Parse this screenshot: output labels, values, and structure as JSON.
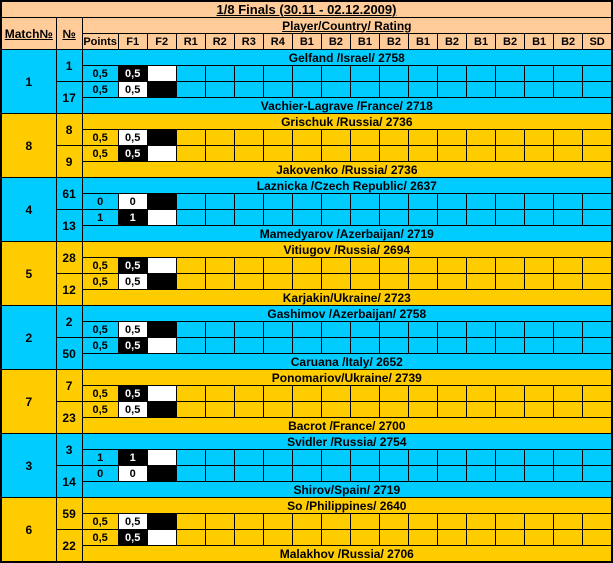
{
  "title": "1/8 Finals (30.11 - 02.12.2009)",
  "header": {
    "match_no_label": "Match№",
    "no_label": "№",
    "player_group_label": "Player/Country/ Rating",
    "columns": [
      "Points",
      "F1",
      "F2",
      "R1",
      "R2",
      "R3",
      "R4",
      "B1",
      "B2",
      "B1",
      "B2",
      "B1",
      "B2",
      "B1",
      "B2",
      "B1",
      "B2",
      "SD"
    ]
  },
  "colors": {
    "header_bg": "#ffcc99",
    "row_cyan": "#00ccff",
    "row_yellow": "#ffcc00",
    "white_game_cell": "#ffffff",
    "black_game_cell": "#000000",
    "black_cell_text": "#ffffff",
    "border": "#000000",
    "text": "#000000"
  },
  "matches": [
    {
      "match_no": "1",
      "row_color": "cyan",
      "players": [
        {
          "no": "1",
          "name": "Gelfand /Israel/ 2758",
          "points": "0,5",
          "f1": {
            "score": "0,5",
            "piece_color": "black"
          },
          "f2": {
            "score": "",
            "piece_color": "white"
          }
        },
        {
          "no": "17",
          "name": "Vachier-Lagrave /France/ 2718",
          "points": "0,5",
          "f1": {
            "score": "0,5",
            "piece_color": "white"
          },
          "f2": {
            "score": "",
            "piece_color": "black"
          }
        }
      ]
    },
    {
      "match_no": "8",
      "row_color": "yellow",
      "players": [
        {
          "no": "8",
          "name": "Grischuk /Russia/ 2736",
          "points": "0,5",
          "f1": {
            "score": "0,5",
            "piece_color": "white"
          },
          "f2": {
            "score": "",
            "piece_color": "black"
          }
        },
        {
          "no": "9",
          "name": "Jakovenko /Russia/ 2736",
          "points": "0,5",
          "f1": {
            "score": "0,5",
            "piece_color": "black"
          },
          "f2": {
            "score": "",
            "piece_color": "white"
          }
        }
      ]
    },
    {
      "match_no": "4",
      "row_color": "cyan",
      "players": [
        {
          "no": "61",
          "name": "Laznicka /Czech Republic/ 2637",
          "points": "0",
          "f1": {
            "score": "0",
            "piece_color": "white"
          },
          "f2": {
            "score": "",
            "piece_color": "black"
          }
        },
        {
          "no": "13",
          "name": "Mamedyarov /Azerbaijan/ 2719",
          "points": "1",
          "f1": {
            "score": "1",
            "piece_color": "black"
          },
          "f2": {
            "score": "",
            "piece_color": "white"
          }
        }
      ]
    },
    {
      "match_no": "5",
      "row_color": "yellow",
      "players": [
        {
          "no": "28",
          "name": "Vitiugov /Russia/ 2694",
          "points": "0,5",
          "f1": {
            "score": "0,5",
            "piece_color": "black"
          },
          "f2": {
            "score": "",
            "piece_color": "white"
          }
        },
        {
          "no": "12",
          "name": "Karjakin/Ukraine/ 2723",
          "points": "0,5",
          "f1": {
            "score": "0,5",
            "piece_color": "white"
          },
          "f2": {
            "score": "",
            "piece_color": "black"
          }
        }
      ]
    },
    {
      "match_no": "2",
      "row_color": "cyan",
      "players": [
        {
          "no": "2",
          "name": "Gashimov /Azerbaijan/ 2758",
          "points": "0,5",
          "f1": {
            "score": "0,5",
            "piece_color": "white"
          },
          "f2": {
            "score": "",
            "piece_color": "black"
          }
        },
        {
          "no": "50",
          "name": "Caruana /Italy/ 2652",
          "points": "0,5",
          "f1": {
            "score": "0,5",
            "piece_color": "black"
          },
          "f2": {
            "score": "",
            "piece_color": "white"
          }
        }
      ]
    },
    {
      "match_no": "7",
      "row_color": "yellow",
      "players": [
        {
          "no": "7",
          "name": "Ponomariov/Ukraine/ 2739",
          "points": "0,5",
          "f1": {
            "score": "0,5",
            "piece_color": "black"
          },
          "f2": {
            "score": "",
            "piece_color": "white"
          }
        },
        {
          "no": "23",
          "name": "Bacrot /France/ 2700",
          "points": "0,5",
          "f1": {
            "score": "0,5",
            "piece_color": "white"
          },
          "f2": {
            "score": "",
            "piece_color": "black"
          }
        }
      ]
    },
    {
      "match_no": "3",
      "row_color": "cyan",
      "players": [
        {
          "no": "3",
          "name": "Svidler /Russia/ 2754",
          "points": "1",
          "f1": {
            "score": "1",
            "piece_color": "black"
          },
          "f2": {
            "score": "",
            "piece_color": "white"
          }
        },
        {
          "no": "14",
          "name": "Shirov/Spain/ 2719",
          "points": "0",
          "f1": {
            "score": "0",
            "piece_color": "white"
          },
          "f2": {
            "score": "",
            "piece_color": "black"
          }
        }
      ]
    },
    {
      "match_no": "6",
      "row_color": "yellow",
      "players": [
        {
          "no": "59",
          "name": "So /Philippines/ 2640",
          "points": "0,5",
          "f1": {
            "score": "0,5",
            "piece_color": "white"
          },
          "f2": {
            "score": "",
            "piece_color": "black"
          }
        },
        {
          "no": "22",
          "name": "Malakhov /Russia/ 2706",
          "points": "0,5",
          "f1": {
            "score": "0,5",
            "piece_color": "black"
          },
          "f2": {
            "score": "",
            "piece_color": "white"
          }
        }
      ]
    }
  ]
}
